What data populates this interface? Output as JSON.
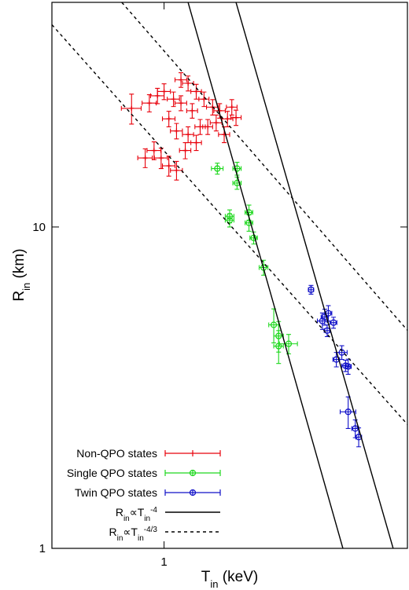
{
  "chart_data": {
    "type": "scatter",
    "x_label": [
      {
        "text": "T"
      },
      {
        "text": "in",
        "shift": "sub"
      },
      {
        "text": " (keV)"
      }
    ],
    "y_label": [
      {
        "text": "R"
      },
      {
        "text": "in",
        "shift": "sub"
      },
      {
        "text": " (km)"
      }
    ],
    "xlim": [
      0.5,
      4.5
    ],
    "ylim": [
      1,
      50
    ],
    "xscale": "log",
    "yscale": "log",
    "xticks": [
      1
    ],
    "yticks": [
      1,
      10
    ],
    "legend": "lower left",
    "series": [
      {
        "name": [
          {
            "text": "Non-QPO states"
          }
        ],
        "color": "#e8000b",
        "marker": "plus",
        "x": [
          0.818,
          0.913,
          0.982,
          1.03,
          1.08,
          1.0,
          1.11,
          1.16,
          1.22,
          1.28,
          1.35,
          1.41,
          1.48,
          1.56,
          1.03,
          1.08,
          1.16,
          1.22,
          1.31,
          1.45,
          1.19,
          1.11,
          1.06,
          0.96,
          0.89,
          0.94,
          1.25,
          1.38,
          1.52,
          1.14
        ],
        "values": [
          23.4,
          24.3,
          16.4,
          15.5,
          15.0,
          26.4,
          28.7,
          28.0,
          26.4,
          25.0,
          23.6,
          23.0,
          21.7,
          21.9,
          21.7,
          19.9,
          19.4,
          18.3,
          20.5,
          19.4,
          23.0,
          24.3,
          25.0,
          25.6,
          16.4,
          17.3,
          20.5,
          21.1,
          23.6,
          17.3
        ],
        "xerr": [
          0.05,
          0.04,
          0.04,
          0.04,
          0.04,
          0.04,
          0.04,
          0.04,
          0.04,
          0.04,
          0.05,
          0.05,
          0.05,
          0.05,
          0.04,
          0.04,
          0.04,
          0.04,
          0.04,
          0.05,
          0.04,
          0.04,
          0.04,
          0.04,
          0.04,
          0.04,
          0.04,
          0.05,
          0.05,
          0.04
        ],
        "yerr": [
          2.5,
          1.5,
          1.2,
          1.1,
          1.0,
          1.5,
          1.5,
          1.5,
          1.4,
          1.3,
          1.3,
          1.2,
          1.2,
          1.2,
          1.2,
          1.1,
          1.1,
          1.0,
          1.1,
          1.1,
          1.2,
          1.3,
          1.3,
          1.4,
          1.1,
          1.1,
          1.1,
          1.2,
          1.3,
          1.0
        ]
      },
      {
        "name": [
          {
            "text": "Single QPO states"
          }
        ],
        "color": "#1ed81e",
        "marker": "circle",
        "x": [
          1.39,
          1.57,
          1.57,
          1.5,
          1.5,
          1.69,
          1.69,
          1.74,
          1.85,
          1.97,
          2.03,
          2.16,
          2.03
        ],
        "values": [
          15.2,
          15.2,
          13.7,
          10.8,
          10.5,
          11.1,
          10.3,
          9.25,
          7.48,
          4.96,
          4.58,
          4.33,
          4.26
        ],
        "xerr": [
          0.05,
          0.04,
          0.04,
          0.04,
          0.04,
          0.04,
          0.04,
          0.04,
          0.05,
          0.06,
          0.06,
          0.12,
          0.06
        ],
        "yerr": [
          0.6,
          0.7,
          0.6,
          0.5,
          0.5,
          0.6,
          0.6,
          0.4,
          0.4,
          0.6,
          0.5,
          0.3,
          0.5
        ]
      },
      {
        "name": [
          {
            "text": "Twin QPO states"
          }
        ],
        "color": "#1010c8",
        "marker": "circle",
        "x": [
          2.48,
          2.66,
          2.7,
          2.74,
          2.76,
          2.85,
          2.9,
          3.0,
          3.07,
          3.12,
          3.12,
          3.26,
          3.33
        ],
        "values": [
          6.38,
          5.1,
          5.25,
          4.76,
          5.39,
          5.04,
          3.87,
          4.07,
          3.7,
          3.68,
          2.66,
          2.36,
          2.22
        ],
        "xerr": [
          0.04,
          0.08,
          0.06,
          0.05,
          0.06,
          0.06,
          0.06,
          0.1,
          0.07,
          0.06,
          0.15,
          0.07,
          0.06
        ],
        "yerr": [
          0.2,
          0.3,
          0.3,
          0.2,
          0.3,
          0.2,
          0.2,
          0.2,
          0.15,
          0.2,
          0.3,
          0.15,
          0.15
        ]
      },
      {
        "name": [
          {
            "text": "R"
          },
          {
            "text": "in",
            "shift": "sub"
          },
          {
            "text": "∝T"
          },
          {
            "text": "in",
            "shift": "sub"
          },
          {
            "text": "-4",
            "shift": "super"
          }
        ],
        "type": "line",
        "color": "#000000",
        "dash": false,
        "x": [
          1.16,
          3.02
        ],
        "values": [
          50,
          1
        ]
      },
      {
        "name": [],
        "type": "line",
        "color": "#000000",
        "dash": false,
        "x": [
          1.56,
          4.12
        ],
        "values": [
          50,
          1
        ]
      },
      {
        "name": [
          {
            "text": "R"
          },
          {
            "text": "in",
            "shift": "sub"
          },
          {
            "text": "∝T"
          },
          {
            "text": "in",
            "shift": "sub"
          },
          {
            "text": "-4/3",
            "shift": "super"
          }
        ],
        "type": "line",
        "color": "#000000",
        "dash": true,
        "x": [
          0.5,
          4.5
        ],
        "values": [
          42.6,
          2.43
        ]
      },
      {
        "name": [],
        "type": "line",
        "color": "#000000",
        "dash": true,
        "x": [
          0.77,
          4.5
        ],
        "values": [
          50,
          4.77
        ]
      }
    ]
  }
}
